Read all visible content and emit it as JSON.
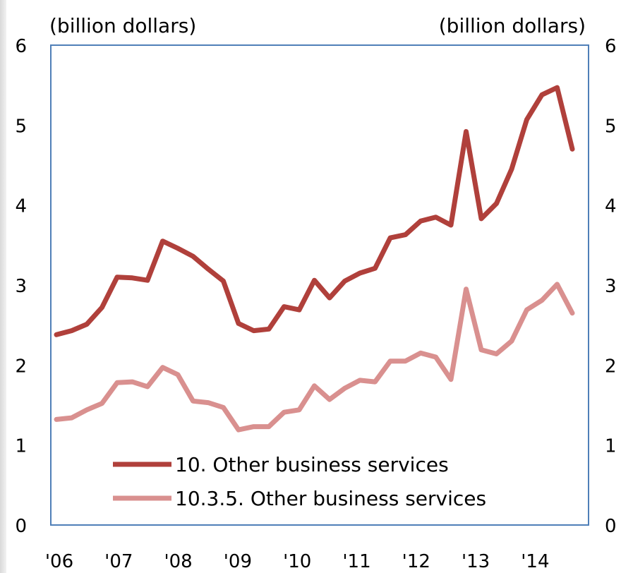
{
  "chart_data": {
    "type": "line",
    "left_unit": "(billion dollars)",
    "right_unit": "(billion dollars)",
    "ylim": [
      0,
      6
    ],
    "yticks": [
      "0",
      "1",
      "2",
      "3",
      "4",
      "5",
      "6"
    ],
    "x_tick_labels": [
      "'06",
      "'07",
      "'08",
      "'09",
      "'10",
      "'11",
      "'12",
      "'13",
      "'14"
    ],
    "grid": false,
    "legend_position": "bottom-center",
    "series": [
      {
        "name": "10. Other business services",
        "color": "#b0403b",
        "values": [
          2.38,
          2.43,
          2.51,
          2.72,
          3.1,
          3.09,
          3.06,
          3.55,
          3.46,
          3.36,
          3.2,
          3.05,
          2.52,
          2.43,
          2.45,
          2.73,
          2.69,
          3.06,
          2.84,
          3.05,
          3.15,
          3.21,
          3.59,
          3.63,
          3.8,
          3.85,
          3.75,
          4.92,
          3.83,
          4.02,
          4.45,
          5.07,
          5.38,
          5.47,
          4.7
        ]
      },
      {
        "name": "10.3.5. Other business services",
        "color": "#d9908f",
        "values": [
          1.32,
          1.34,
          1.44,
          1.52,
          1.78,
          1.79,
          1.73,
          1.97,
          1.88,
          1.55,
          1.53,
          1.47,
          1.19,
          1.23,
          1.23,
          1.41,
          1.44,
          1.74,
          1.57,
          1.71,
          1.81,
          1.79,
          2.05,
          2.05,
          2.15,
          2.1,
          1.82,
          2.95,
          2.19,
          2.14,
          2.3,
          2.69,
          2.81,
          3.01,
          2.65
        ]
      }
    ]
  }
}
